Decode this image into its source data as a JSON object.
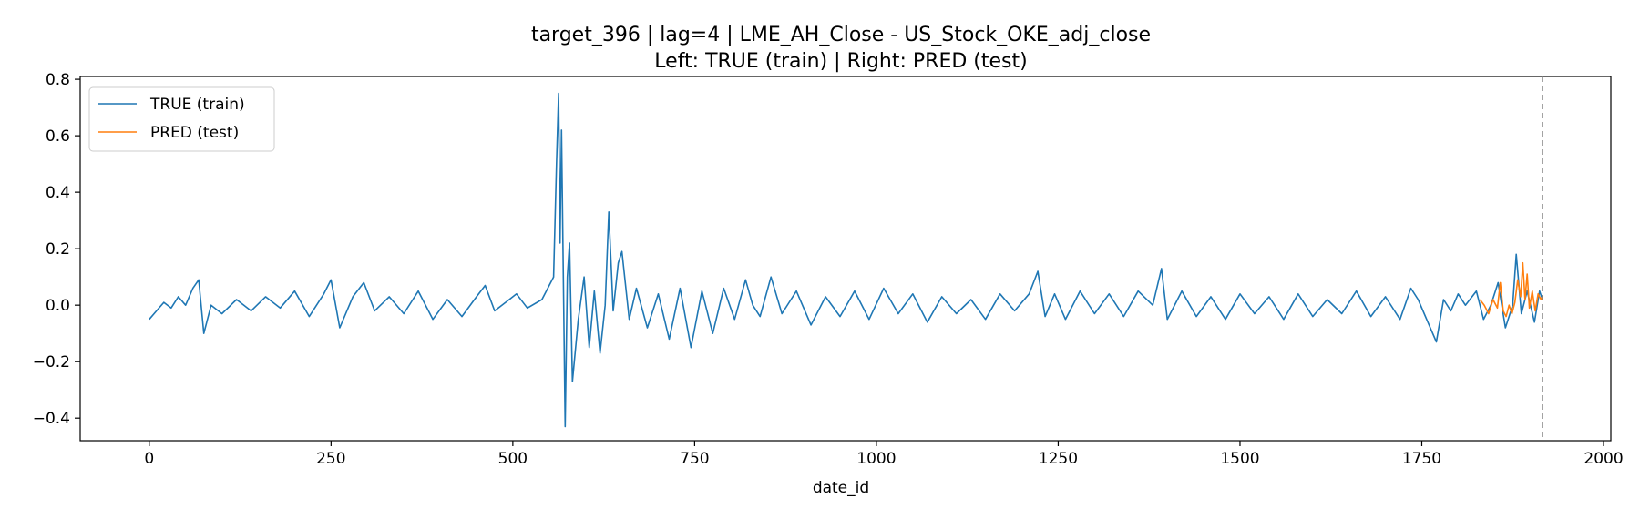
{
  "chart_data": {
    "type": "line",
    "title": "target_396 | lag=4 | LME_AH_Close - US_Stock_OKE_adj_close",
    "subtitle": "Left: TRUE (train) | Right: PRED (test)",
    "xlabel": "date_id",
    "ylabel": "",
    "xlim": [
      -95,
      2010
    ],
    "ylim": [
      -0.48,
      0.81
    ],
    "x_ticks": [
      0,
      250,
      500,
      750,
      1000,
      1250,
      1500,
      1750,
      2000
    ],
    "x_tick_labels": [
      "0",
      "250",
      "500",
      "750",
      "1000",
      "1250",
      "1500",
      "1750",
      "2000"
    ],
    "y_ticks": [
      -0.4,
      -0.2,
      0.0,
      0.2,
      0.4,
      0.6,
      0.8
    ],
    "y_tick_labels": [
      "−0.4",
      "−0.2",
      "0.0",
      "0.2",
      "0.4",
      "0.6",
      "0.8"
    ],
    "grid": false,
    "legend_position": "upper-left",
    "vline": {
      "x": 1916,
      "style": "dashed",
      "color": "#808080"
    },
    "series": [
      {
        "name": "TRUE (train)",
        "color": "#1f77b4",
        "points": [
          [
            0,
            -0.05
          ],
          [
            10,
            -0.02
          ],
          [
            20,
            0.01
          ],
          [
            30,
            -0.01
          ],
          [
            40,
            0.03
          ],
          [
            50,
            0.0
          ],
          [
            60,
            0.06
          ],
          [
            68,
            0.09
          ],
          [
            75,
            -0.1
          ],
          [
            85,
            0.0
          ],
          [
            100,
            -0.03
          ],
          [
            120,
            0.02
          ],
          [
            140,
            -0.02
          ],
          [
            160,
            0.03
          ],
          [
            180,
            -0.01
          ],
          [
            200,
            0.05
          ],
          [
            220,
            -0.04
          ],
          [
            240,
            0.04
          ],
          [
            250,
            0.09
          ],
          [
            262,
            -0.08
          ],
          [
            280,
            0.03
          ],
          [
            295,
            0.08
          ],
          [
            310,
            -0.02
          ],
          [
            330,
            0.03
          ],
          [
            350,
            -0.03
          ],
          [
            370,
            0.05
          ],
          [
            390,
            -0.05
          ],
          [
            410,
            0.02
          ],
          [
            430,
            -0.04
          ],
          [
            450,
            0.03
          ],
          [
            462,
            0.07
          ],
          [
            475,
            -0.02
          ],
          [
            490,
            0.01
          ],
          [
            505,
            0.04
          ],
          [
            520,
            -0.01
          ],
          [
            540,
            0.02
          ],
          [
            550,
            0.07
          ],
          [
            556,
            0.1
          ],
          [
            560,
            0.5
          ],
          [
            563,
            0.75
          ],
          [
            565,
            0.22
          ],
          [
            567,
            0.62
          ],
          [
            570,
            0.0
          ],
          [
            572,
            -0.43
          ],
          [
            575,
            0.1
          ],
          [
            578,
            0.22
          ],
          [
            582,
            -0.27
          ],
          [
            590,
            -0.05
          ],
          [
            598,
            0.1
          ],
          [
            605,
            -0.15
          ],
          [
            612,
            0.05
          ],
          [
            620,
            -0.17
          ],
          [
            627,
            0.0
          ],
          [
            632,
            0.33
          ],
          [
            638,
            -0.02
          ],
          [
            645,
            0.15
          ],
          [
            650,
            0.19
          ],
          [
            660,
            -0.05
          ],
          [
            670,
            0.06
          ],
          [
            685,
            -0.08
          ],
          [
            700,
            0.04
          ],
          [
            715,
            -0.12
          ],
          [
            730,
            0.06
          ],
          [
            745,
            -0.15
          ],
          [
            760,
            0.05
          ],
          [
            775,
            -0.1
          ],
          [
            790,
            0.06
          ],
          [
            805,
            -0.05
          ],
          [
            820,
            0.09
          ],
          [
            830,
            0.0
          ],
          [
            840,
            -0.04
          ],
          [
            855,
            0.1
          ],
          [
            870,
            -0.03
          ],
          [
            890,
            0.05
          ],
          [
            910,
            -0.07
          ],
          [
            930,
            0.03
          ],
          [
            950,
            -0.04
          ],
          [
            970,
            0.05
          ],
          [
            990,
            -0.05
          ],
          [
            1010,
            0.06
          ],
          [
            1030,
            -0.03
          ],
          [
            1050,
            0.04
          ],
          [
            1070,
            -0.06
          ],
          [
            1090,
            0.03
          ],
          [
            1110,
            -0.03
          ],
          [
            1130,
            0.02
          ],
          [
            1150,
            -0.05
          ],
          [
            1170,
            0.04
          ],
          [
            1190,
            -0.02
          ],
          [
            1210,
            0.04
          ],
          [
            1222,
            0.12
          ],
          [
            1232,
            -0.04
          ],
          [
            1245,
            0.04
          ],
          [
            1260,
            -0.05
          ],
          [
            1280,
            0.05
          ],
          [
            1300,
            -0.03
          ],
          [
            1320,
            0.04
          ],
          [
            1340,
            -0.04
          ],
          [
            1360,
            0.05
          ],
          [
            1380,
            0.0
          ],
          [
            1392,
            0.13
          ],
          [
            1400,
            -0.05
          ],
          [
            1420,
            0.05
          ],
          [
            1440,
            -0.04
          ],
          [
            1460,
            0.03
          ],
          [
            1480,
            -0.05
          ],
          [
            1500,
            0.04
          ],
          [
            1520,
            -0.03
          ],
          [
            1540,
            0.03
          ],
          [
            1560,
            -0.05
          ],
          [
            1580,
            0.04
          ],
          [
            1600,
            -0.04
          ],
          [
            1620,
            0.02
          ],
          [
            1640,
            -0.03
          ],
          [
            1660,
            0.05
          ],
          [
            1680,
            -0.04
          ],
          [
            1700,
            0.03
          ],
          [
            1720,
            -0.05
          ],
          [
            1735,
            0.06
          ],
          [
            1745,
            0.02
          ],
          [
            1760,
            -0.07
          ],
          [
            1770,
            -0.13
          ],
          [
            1780,
            0.02
          ],
          [
            1790,
            -0.02
          ],
          [
            1800,
            0.04
          ],
          [
            1810,
            0.0
          ],
          [
            1825,
            0.05
          ],
          [
            1835,
            -0.05
          ],
          [
            1845,
            0.0
          ],
          [
            1855,
            0.08
          ],
          [
            1865,
            -0.08
          ],
          [
            1875,
            0.0
          ],
          [
            1880,
            0.18
          ],
          [
            1887,
            -0.03
          ],
          [
            1895,
            0.05
          ],
          [
            1905,
            -0.06
          ],
          [
            1912,
            0.05
          ],
          [
            1916,
            0.02
          ]
        ]
      },
      {
        "name": "PRED (test)",
        "color": "#ff7f0e",
        "points": [
          [
            1830,
            0.02
          ],
          [
            1836,
            0.0
          ],
          [
            1842,
            -0.03
          ],
          [
            1848,
            0.02
          ],
          [
            1854,
            -0.01
          ],
          [
            1858,
            0.08
          ],
          [
            1862,
            -0.02
          ],
          [
            1866,
            -0.04
          ],
          [
            1870,
            0.0
          ],
          [
            1874,
            -0.03
          ],
          [
            1878,
            0.01
          ],
          [
            1882,
            0.09
          ],
          [
            1886,
            0.03
          ],
          [
            1889,
            0.15
          ],
          [
            1892,
            0.02
          ],
          [
            1895,
            0.11
          ],
          [
            1898,
            -0.01
          ],
          [
            1902,
            0.05
          ],
          [
            1906,
            -0.02
          ],
          [
            1910,
            0.04
          ],
          [
            1914,
            0.02
          ],
          [
            1916,
            0.03
          ]
        ]
      }
    ]
  }
}
